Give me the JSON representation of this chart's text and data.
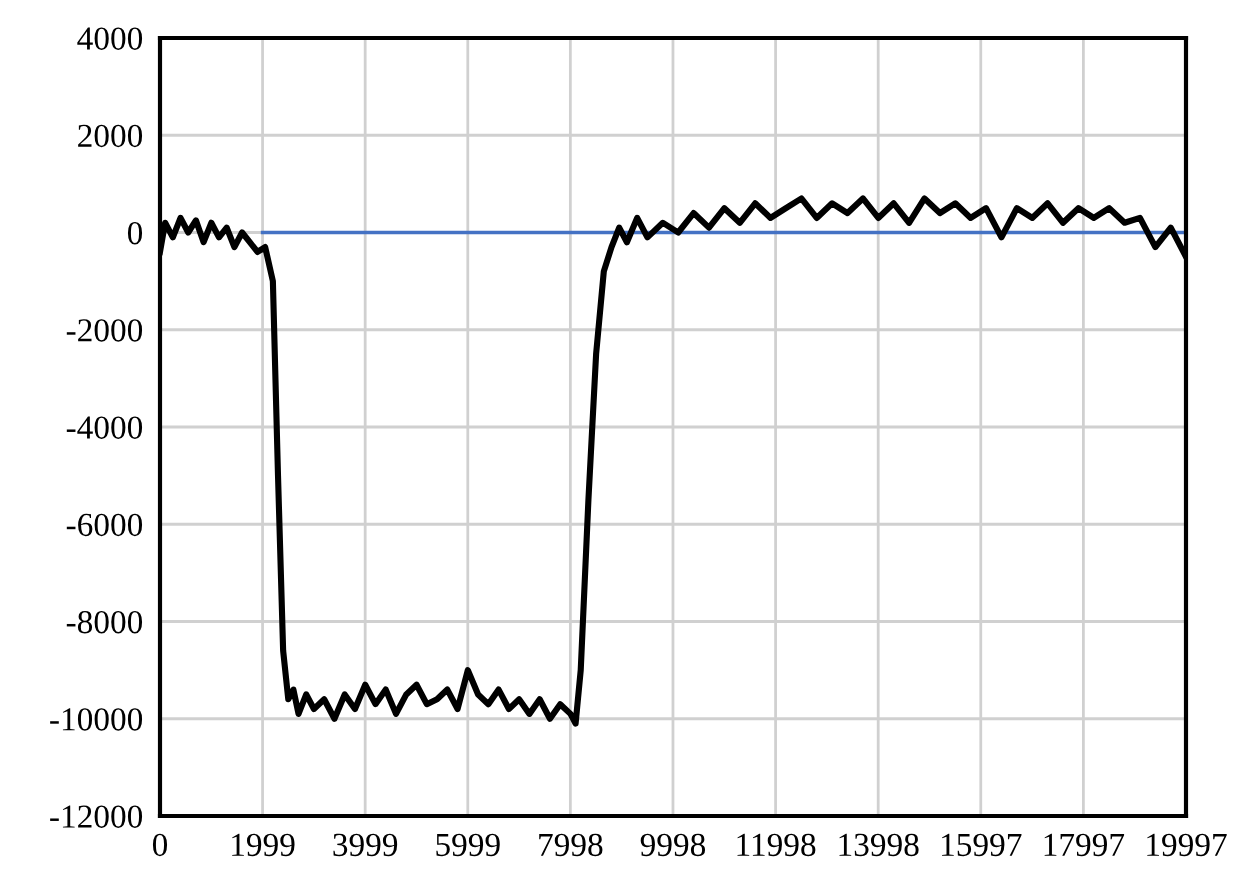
{
  "chart_data": {
    "type": "line",
    "series": [
      {
        "color": "#000000",
        "x": [
          0,
          100,
          250,
          400,
          550,
          700,
          850,
          1000,
          1150,
          1300,
          1450,
          1600,
          1750,
          1900,
          2050,
          2200,
          2300,
          2400,
          2500,
          2600,
          2700,
          2850,
          3000,
          3200,
          3400,
          3600,
          3800,
          4000,
          4200,
          4400,
          4600,
          4800,
          5000,
          5200,
          5400,
          5600,
          5800,
          6000,
          6200,
          6400,
          6600,
          6800,
          7000,
          7200,
          7400,
          7600,
          7800,
          8000,
          8100,
          8200,
          8350,
          8500,
          8650,
          8800,
          8950,
          9100,
          9300,
          9500,
          9800,
          10100,
          10400,
          10700,
          11000,
          11300,
          11600,
          11900,
          12200,
          12500,
          12800,
          13100,
          13400,
          13700,
          14000,
          14300,
          14600,
          14900,
          15200,
          15500,
          15800,
          16100,
          16400,
          16700,
          17000,
          17300,
          17600,
          17900,
          18200,
          18500,
          18800,
          19100,
          19400,
          19700,
          19997
        ],
        "values": [
          -400,
          200,
          -100,
          300,
          0,
          250,
          -200,
          200,
          -100,
          100,
          -300,
          0,
          -200,
          -400,
          -300,
          -1000,
          -5000,
          -8600,
          -9600,
          -9400,
          -9900,
          -9500,
          -9800,
          -9600,
          -10000,
          -9500,
          -9800,
          -9300,
          -9700,
          -9400,
          -9900,
          -9500,
          -9300,
          -9700,
          -9600,
          -9400,
          -9800,
          -9000,
          -9500,
          -9700,
          -9400,
          -9800,
          -9600,
          -9900,
          -9600,
          -10000,
          -9700,
          -9900,
          -10100,
          -9000,
          -5500,
          -2500,
          -800,
          -300,
          100,
          -200,
          300,
          -100,
          200,
          0,
          400,
          100,
          500,
          200,
          600,
          300,
          500,
          700,
          300,
          600,
          400,
          700,
          300,
          600,
          200,
          700,
          400,
          600,
          300,
          500,
          -100,
          500,
          300,
          600,
          200,
          500,
          300,
          500,
          200,
          300,
          -300,
          100,
          -500
        ]
      },
      {
        "color": "#4472c4",
        "x": [
          2000,
          19997
        ],
        "values": [
          0,
          0
        ]
      }
    ],
    "xlim": [
      0,
      19997
    ],
    "xticks": [
      0,
      1999,
      3999,
      5999,
      7998,
      9998,
      11998,
      13998,
      15997,
      17997,
      19997
    ],
    "ylim": [
      -12000,
      4000
    ],
    "yticks": [
      -12000,
      -10000,
      -8000,
      -6000,
      -4000,
      -2000,
      0,
      2000,
      4000
    ],
    "grid": true
  }
}
